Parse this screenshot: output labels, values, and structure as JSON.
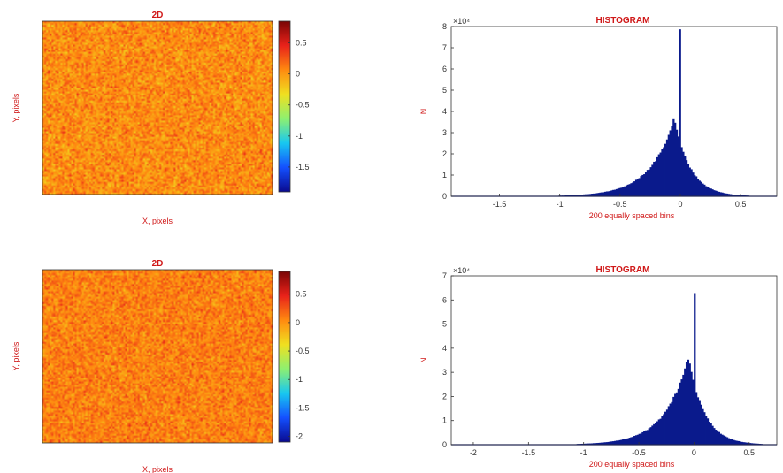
{
  "colors": {
    "label": "#d01818",
    "bar": "#0a1a8c",
    "axis": "#333333",
    "colormap": [
      "#0a0a8f",
      "#1450ff",
      "#18c8f0",
      "#8ef070",
      "#f0e020",
      "#ff8a10",
      "#e8221a",
      "#7a0505"
    ]
  },
  "chart_data": [
    {
      "type": "heatmap",
      "title": "2D",
      "xlabel": "X, pixels",
      "ylabel": "Y, pixels",
      "colorbar": {
        "range": [
          -1.9,
          0.85
        ],
        "ticks": [
          0.5,
          0,
          -0.5,
          -1,
          -1.5
        ],
        "tick_labels": [
          "0.5",
          "0",
          "-0.5",
          "-1",
          "-1.5"
        ]
      },
      "dominant_value": "about 0 (yellow-orange noise)"
    },
    {
      "type": "bar",
      "title": "HISTOGRAM",
      "xlabel": "200 equally spaced bins",
      "ylabel": "N",
      "y_multiplier": "×10⁴",
      "xlim": [
        -1.9,
        0.8
      ],
      "ylim": [
        0,
        8
      ],
      "xticks": [
        -1.5,
        -1,
        -0.5,
        0,
        0.5
      ],
      "xtick_labels": [
        "-1.5",
        "-1",
        "-0.5",
        "0",
        "0.5"
      ],
      "yticks": [
        0,
        1,
        2,
        3,
        4,
        5,
        6,
        7,
        8
      ],
      "ytick_labels": [
        "0",
        "1",
        "2",
        "3",
        "4",
        "5",
        "6",
        "7",
        "8"
      ],
      "distribution": {
        "peak_x": -0.05,
        "peak_y": 3.7,
        "left_scale": 0.2,
        "right_scale": 0.13,
        "spike_x": 0.0,
        "spike_y": 7.9
      }
    },
    {
      "type": "heatmap",
      "title": "2D",
      "xlabel": "X, pixels",
      "ylabel": "Y, pixels",
      "colorbar": {
        "range": [
          -2.1,
          0.9
        ],
        "ticks": [
          0.5,
          0,
          -0.5,
          -1,
          -1.5,
          -2
        ],
        "tick_labels": [
          "0.5",
          "0",
          "-0.5",
          "-1",
          "-1.5",
          "-2"
        ]
      },
      "dominant_value": "about 0 (orange-yellow noise)"
    },
    {
      "type": "bar",
      "title": "HISTOGRAM",
      "xlabel": "200 equally spaced bins",
      "ylabel": "N",
      "y_multiplier": "×10⁴",
      "xlim": [
        -2.2,
        0.75
      ],
      "ylim": [
        0,
        7
      ],
      "xticks": [
        -2,
        -1.5,
        -1,
        -0.5,
        0,
        0.5
      ],
      "xtick_labels": [
        "-2",
        "-1.5",
        "-1",
        "-0.5",
        "0",
        "0.5"
      ],
      "yticks": [
        0,
        1,
        2,
        3,
        4,
        5,
        6,
        7
      ],
      "ytick_labels": [
        "0",
        "1",
        "2",
        "3",
        "4",
        "5",
        "6",
        "7"
      ],
      "distribution": {
        "peak_x": -0.05,
        "peak_y": 3.7,
        "left_scale": 0.21,
        "right_scale": 0.14,
        "spike_x": 0.0,
        "spike_y": 6.2
      }
    }
  ]
}
